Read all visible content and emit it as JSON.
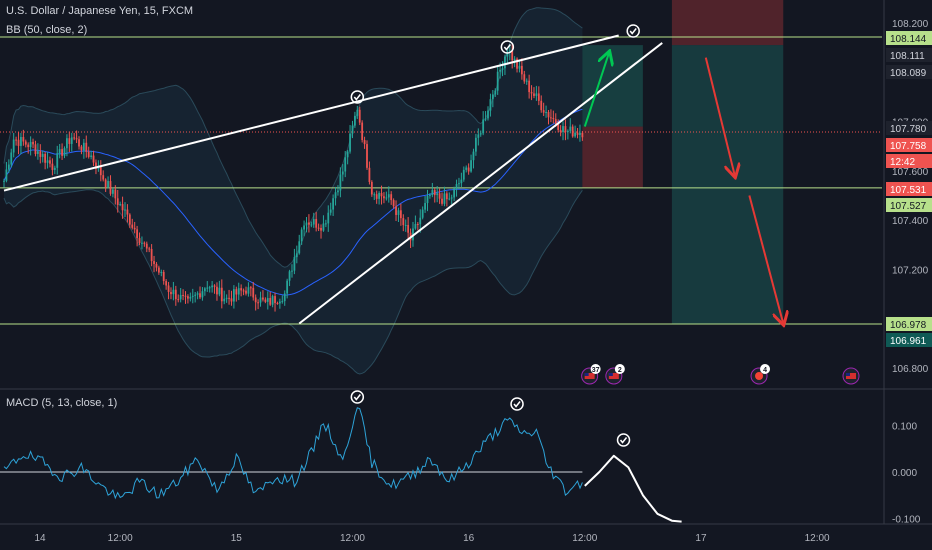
{
  "legend": {
    "symbol": "U.S. Dollar / Japanese Yen, 15, FXCM",
    "indicator_bb": "BB (50, close, 2)",
    "indicator_macd": "MACD (5, 13, close, 1)"
  },
  "colors": {
    "background": "#131722",
    "up_candle": "#26a69a",
    "down_candle": "#ef5350",
    "bb_mid": "#2962ff",
    "macd_line": "#2ea3d8",
    "trendline": "#ffffff",
    "projection_up": "#00c853",
    "projection_down": "#e53935",
    "level_line": "#b7e08b",
    "long_profit_zone": "#1b5e5a",
    "long_loss_zone": "#6b2a2f"
  },
  "chart_data": [
    {
      "type": "candlestick",
      "symbol": "U.S. Dollar / Japanese Yen",
      "timeframe": "15",
      "source": "FXCM",
      "ylim": [
        106.77,
        108.24
      ],
      "x_ticks": [
        "14",
        "12:00",
        "15",
        "12:00",
        "16",
        "12:00",
        "17",
        "12:00"
      ],
      "y_ticks": [
        108.2,
        107.8,
        107.6,
        107.4,
        107.2,
        106.8
      ],
      "y_tick_labels": [
        "108.200",
        "107.800",
        "107.600",
        "107.400",
        "107.200",
        "106.800"
      ],
      "price_labels": [
        {
          "value": "108.144",
          "style": "green"
        },
        {
          "value": "108.111",
          "style": "dark"
        },
        {
          "value": "108.089",
          "style": "dark"
        },
        {
          "value": "107.780",
          "style": "dark"
        },
        {
          "value": "107.758",
          "style": "red"
        },
        {
          "value": "12:42",
          "style": "red"
        },
        {
          "value": "107.531",
          "style": "red"
        },
        {
          "value": "107.527",
          "style": "green"
        },
        {
          "value": "106.978",
          "style": "green"
        },
        {
          "value": "106.961",
          "style": "teal"
        }
      ],
      "horizontal_levels": [
        108.144,
        107.531,
        106.978
      ],
      "current_price": 107.758,
      "price_path_points": [
        {
          "time": "14 00:00",
          "price": 107.56
        },
        {
          "time": "14 01:00",
          "price": 107.73
        },
        {
          "time": "14 03:00",
          "price": 107.7
        },
        {
          "time": "14 05:00",
          "price": 107.62
        },
        {
          "time": "14 07:00",
          "price": 107.74
        },
        {
          "time": "14 09:00",
          "price": 107.66
        },
        {
          "time": "14 11:00",
          "price": 107.52
        },
        {
          "time": "14 13:00",
          "price": 107.4
        },
        {
          "time": "14 15:00",
          "price": 107.26
        },
        {
          "time": "14 17:00",
          "price": 107.12
        },
        {
          "time": "14 19:00",
          "price": 107.06
        },
        {
          "time": "14 21:00",
          "price": 107.14
        },
        {
          "time": "14 23:00",
          "price": 107.08
        },
        {
          "time": "15 01:00",
          "price": 107.12
        },
        {
          "time": "15 03:00",
          "price": 107.06
        },
        {
          "time": "15 05:00",
          "price": 107.1
        },
        {
          "time": "15 07:00",
          "price": 107.4
        },
        {
          "time": "15 09:00",
          "price": 107.38
        },
        {
          "time": "15 11:00",
          "price": 107.6
        },
        {
          "time": "15 12:30",
          "price": 107.86
        },
        {
          "time": "15 14:00",
          "price": 107.52
        },
        {
          "time": "15 16:00",
          "price": 107.48
        },
        {
          "time": "15 18:00",
          "price": 107.32
        },
        {
          "time": "15 20:00",
          "price": 107.5
        },
        {
          "time": "15 22:00",
          "price": 107.48
        },
        {
          "time": "16 00:00",
          "price": 107.62
        },
        {
          "time": "16 02:00",
          "price": 107.86
        },
        {
          "time": "16 04:00",
          "price": 108.1
        },
        {
          "time": "16 06:00",
          "price": 107.95
        },
        {
          "time": "16 08:00",
          "price": 107.84
        },
        {
          "time": "16 10:00",
          "price": 107.76
        },
        {
          "time": "16 11:45",
          "price": 107.76
        }
      ],
      "trendlines": [
        {
          "name": "upper-wedge",
          "from": {
            "time": "14 00:00",
            "price": 107.52
          },
          "to": {
            "time": "16 15:30",
            "price": 108.15
          }
        },
        {
          "name": "lower-wedge",
          "from": {
            "time": "15 06:30",
            "price": 106.98
          },
          "to": {
            "time": "16 20:00",
            "price": 108.12
          }
        }
      ],
      "projection_arrows": [
        {
          "color": "green",
          "from": {
            "time": "16 12:00",
            "price": 107.78
          },
          "to": {
            "time": "16 14:30",
            "price": 108.08
          }
        },
        {
          "color": "red",
          "from": {
            "time": "17 00:30",
            "price": 108.06
          },
          "to": {
            "time": "17 03:30",
            "price": 107.58
          }
        },
        {
          "color": "red",
          "from": {
            "time": "17 05:00",
            "price": 107.5
          },
          "to": {
            "time": "17 08:30",
            "price": 106.98
          }
        }
      ],
      "position_tools": [
        {
          "side": "long",
          "entry": 107.78,
          "target": 108.111,
          "stop": 107.531
        },
        {
          "side": "short",
          "entry": 108.111,
          "target": 106.978,
          "stop": 108.3
        }
      ],
      "event_markers": [
        {
          "icon": "us-flag",
          "badge": "37"
        },
        {
          "icon": "us-flag",
          "badge": "2"
        },
        {
          "icon": "event",
          "badge": "4"
        },
        {
          "icon": "us-flag",
          "badge": ""
        }
      ]
    },
    {
      "type": "line",
      "name": "MACD (5, 13, close, 1)",
      "ylim": [
        -0.12,
        0.17
      ],
      "y_ticks": [
        0.1,
        0.0,
        -0.1
      ],
      "y_tick_labels": [
        "0.100",
        "0.000",
        "-0.100"
      ],
      "zero_line": 0.0,
      "series": [
        {
          "name": "MACD",
          "points": [
            {
              "time": "14 00:00",
              "value": 0.0
            },
            {
              "time": "14 02:00",
              "value": 0.04
            },
            {
              "time": "14 04:00",
              "value": 0.02
            },
            {
              "time": "14 06:00",
              "value": -0.01
            },
            {
              "time": "14 08:00",
              "value": 0.01
            },
            {
              "time": "14 10:00",
              "value": -0.03
            },
            {
              "time": "14 12:00",
              "value": -0.06
            },
            {
              "time": "14 14:00",
              "value": -0.02
            },
            {
              "time": "14 16:00",
              "value": -0.05
            },
            {
              "time": "14 18:00",
              "value": -0.02
            },
            {
              "time": "14 20:00",
              "value": 0.03
            },
            {
              "time": "14 22:00",
              "value": -0.04
            },
            {
              "time": "15 00:00",
              "value": 0.03
            },
            {
              "time": "15 02:00",
              "value": -0.05
            },
            {
              "time": "15 04:00",
              "value": -0.01
            },
            {
              "time": "15 06:00",
              "value": -0.02
            },
            {
              "time": "15 08:00",
              "value": 0.05
            },
            {
              "time": "15 09:00",
              "value": 0.11
            },
            {
              "time": "15 10:00",
              "value": 0.07
            },
            {
              "time": "15 11:00",
              "value": 0.02
            },
            {
              "time": "15 12:30",
              "value": 0.15
            },
            {
              "time": "15 14:00",
              "value": 0.02
            },
            {
              "time": "15 16:00",
              "value": -0.03
            },
            {
              "time": "15 18:00",
              "value": -0.01
            },
            {
              "time": "15 20:00",
              "value": 0.03
            },
            {
              "time": "15 22:00",
              "value": -0.02
            },
            {
              "time": "16 00:00",
              "value": 0.02
            },
            {
              "time": "16 02:00",
              "value": 0.07
            },
            {
              "time": "16 04:00",
              "value": 0.11
            },
            {
              "time": "16 06:00",
              "value": 0.08
            },
            {
              "time": "16 07:00",
              "value": 0.09
            },
            {
              "time": "16 08:00",
              "value": 0.02
            },
            {
              "time": "16 10:00",
              "value": -0.04
            },
            {
              "time": "16 11:45",
              "value": -0.02
            }
          ]
        }
      ],
      "projection_curve": [
        {
          "time": "16 12:00",
          "value": -0.03
        },
        {
          "time": "16 13:30",
          "value": 0.0
        },
        {
          "time": "16 15:00",
          "value": 0.035
        },
        {
          "time": "16 16:30",
          "value": 0.01
        },
        {
          "time": "16 18:00",
          "value": -0.05
        },
        {
          "time": "16 19:30",
          "value": -0.09
        },
        {
          "time": "16 21:00",
          "value": -0.105
        },
        {
          "time": "16 22:00",
          "value": -0.107
        }
      ],
      "check_markers": [
        "15 12:30",
        "16 05:00",
        "16 16:00"
      ]
    }
  ]
}
